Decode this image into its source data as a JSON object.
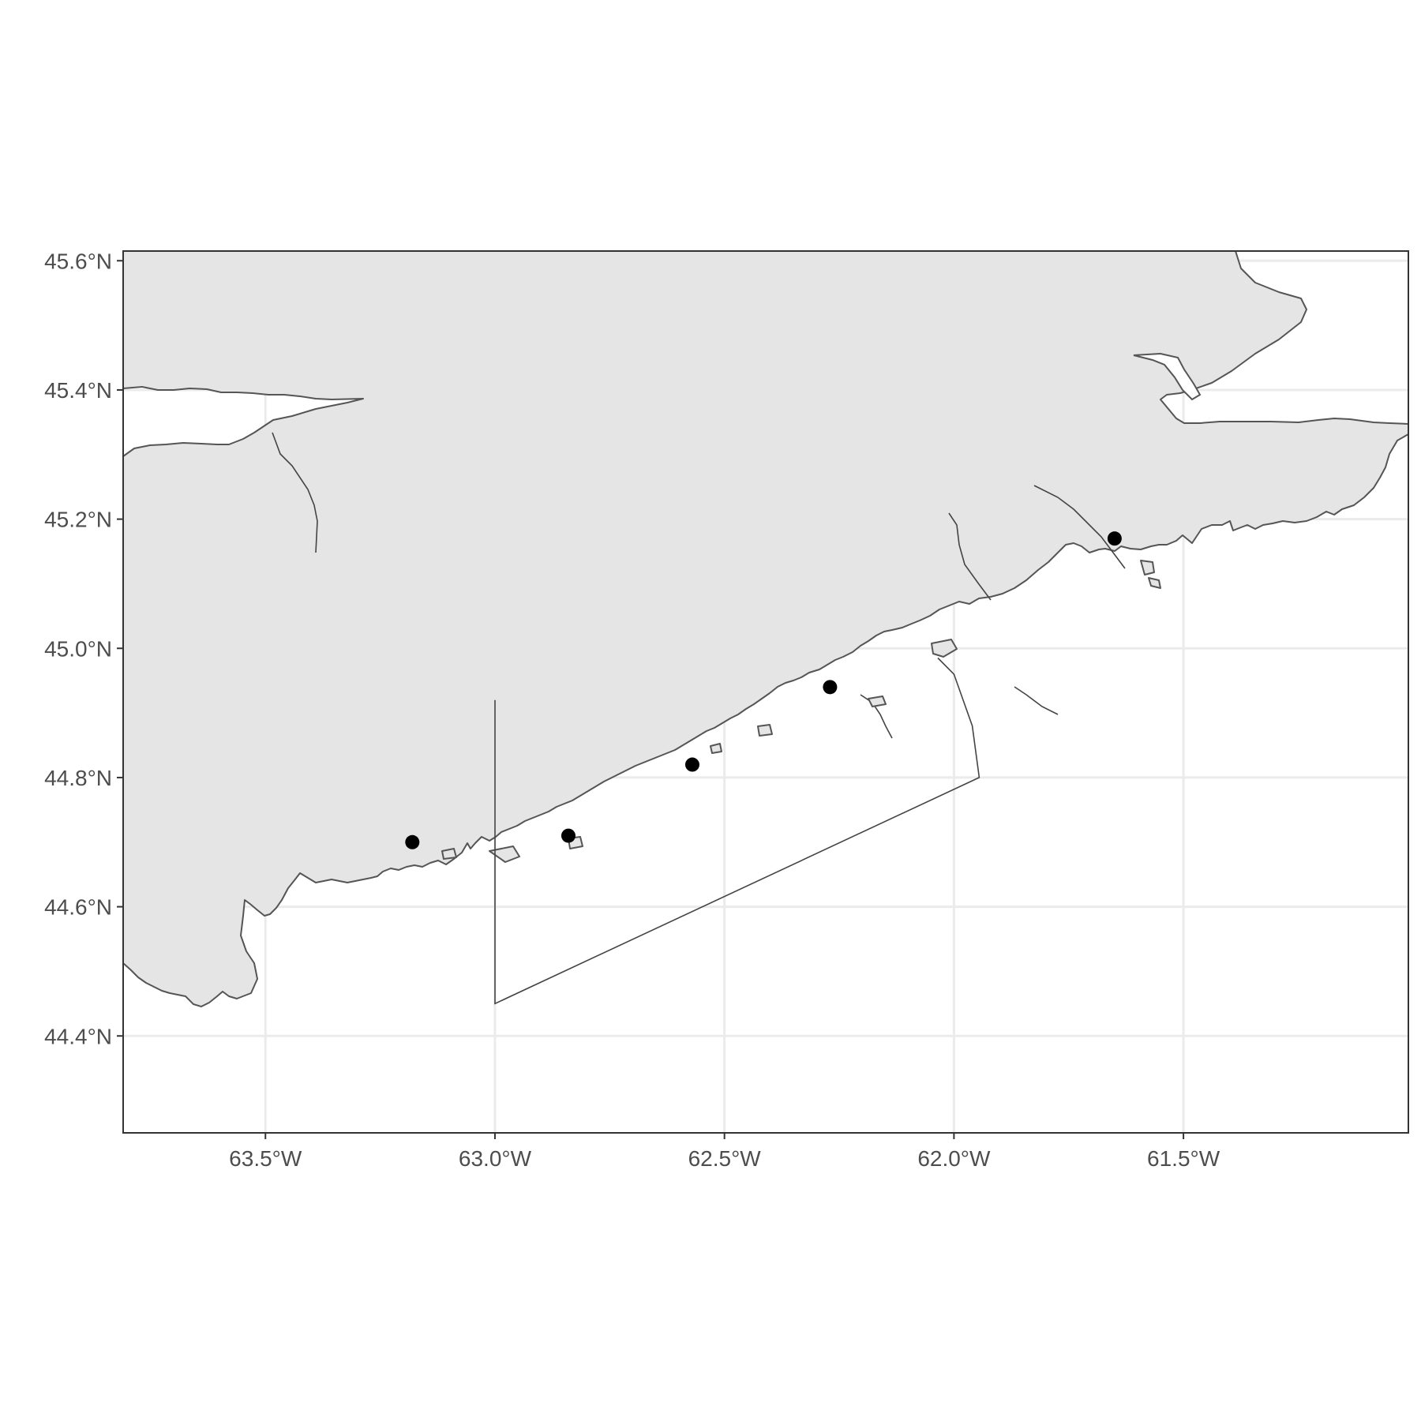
{
  "chart_data": {
    "type": "scatter",
    "title": "",
    "xlabel": "",
    "ylabel": "",
    "projection": "longitude-latitude map",
    "xlim": [
      -63.81,
      -61.01
    ],
    "ylim": [
      44.25,
      45.615
    ],
    "grid": true,
    "x_ticks": [
      {
        "value": -63.5,
        "label": "63.5°W"
      },
      {
        "value": -63.0,
        "label": "63.0°W"
      },
      {
        "value": -62.5,
        "label": "62.5°W"
      },
      {
        "value": -62.0,
        "label": "62.0°W"
      },
      {
        "value": -61.5,
        "label": "61.5°W"
      }
    ],
    "y_ticks": [
      {
        "value": 44.4,
        "label": "44.4°N"
      },
      {
        "value": 44.6,
        "label": "44.6°N"
      },
      {
        "value": 44.8,
        "label": "44.8°N"
      },
      {
        "value": 45.0,
        "label": "45.0°N"
      },
      {
        "value": 45.2,
        "label": "45.2°N"
      },
      {
        "value": 45.4,
        "label": "45.4°N"
      },
      {
        "value": 45.6,
        "label": "45.6°N"
      }
    ],
    "points": [
      {
        "lon": -63.18,
        "lat": 44.7
      },
      {
        "lon": -62.84,
        "lat": 44.71
      },
      {
        "lon": -62.57,
        "lat": 44.82
      },
      {
        "lon": -62.27,
        "lat": 44.94
      },
      {
        "lon": -61.65,
        "lat": 45.17
      }
    ],
    "survey_boundary": [
      {
        "lon": -63.0,
        "lat": 44.92
      },
      {
        "lon": -63.0,
        "lat": 44.45
      },
      {
        "lon": -61.945,
        "lat": 44.8
      },
      {
        "lon": -61.96,
        "lat": 44.88
      },
      {
        "lon": -62.0,
        "lat": 44.96
      },
      {
        "lon": -62.035,
        "lat": 44.985
      }
    ],
    "colors": {
      "land": "#e5e5e5",
      "coastline": "#555555",
      "points": "#000000",
      "grid": "#ebebeb",
      "background": "#ffffff"
    }
  }
}
